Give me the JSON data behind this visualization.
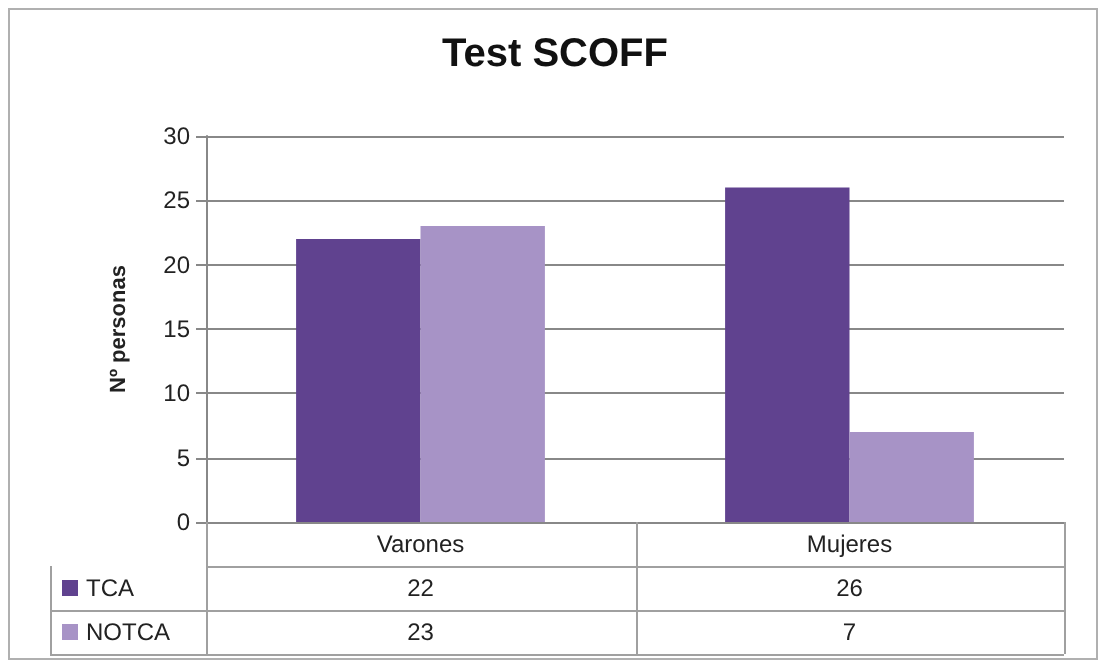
{
  "chart_data": {
    "type": "bar",
    "title": "Test SCOFF",
    "ylabel": "Nº personas",
    "categories": [
      "Varones",
      "Mujeres"
    ],
    "series": [
      {
        "name": "TCA",
        "color": "#60428f",
        "values": [
          22,
          26
        ]
      },
      {
        "name": "NOTCA",
        "color": "#a793c6",
        "values": [
          23,
          7
        ]
      }
    ],
    "ylim": [
      0,
      30
    ],
    "yticks": [
      0,
      5,
      10,
      15,
      20,
      25,
      30
    ],
    "grid": "y",
    "legend": "bottom",
    "data_labels": true
  }
}
